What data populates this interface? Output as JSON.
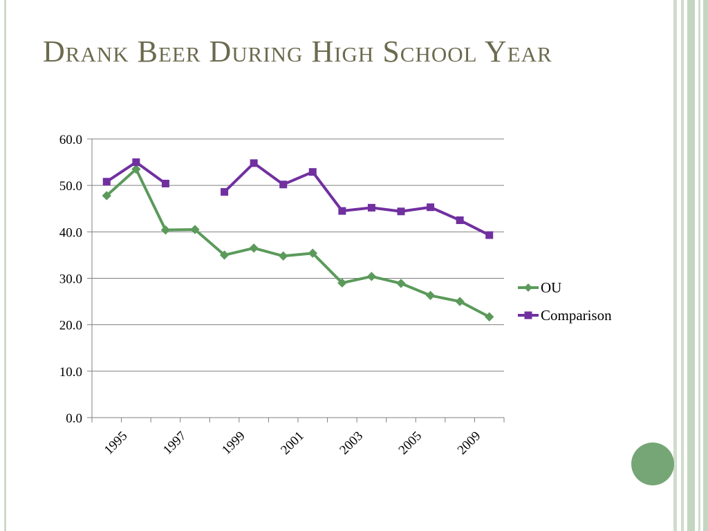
{
  "slide": {
    "title": "Drank Beer During High School Year"
  },
  "colors": {
    "ou": "#5b9a5b",
    "comparison": "#7030a0",
    "title": "#6b6a4e",
    "accent_circle": "#76a676",
    "border": "#cddbc9"
  },
  "chart_data": {
    "type": "line",
    "title": "",
    "xlabel": "",
    "ylabel": "",
    "ylim": [
      0,
      60
    ],
    "y_ticks": [
      "0.0",
      "10.0",
      "20.0",
      "30.0",
      "40.0",
      "50.0",
      "60.0"
    ],
    "x_tick_labels": [
      "1995",
      "1997",
      "1999",
      "2001",
      "2003",
      "2005",
      "2009"
    ],
    "grid": "horizontal",
    "legend_position": "right",
    "series": [
      {
        "name": "OU",
        "marker": "diamond",
        "values": [
          47.8,
          53.5,
          40.4,
          40.5,
          35.0,
          36.5,
          34.8,
          35.4,
          29.0,
          30.4,
          28.9,
          26.3,
          25.0,
          21.7
        ]
      },
      {
        "name": "Comparison",
        "marker": "square",
        "values": [
          50.8,
          55.0,
          50.4,
          null,
          48.6,
          54.8,
          50.2,
          52.9,
          44.5,
          45.2,
          44.4,
          45.3,
          42.5,
          39.3
        ]
      }
    ]
  }
}
